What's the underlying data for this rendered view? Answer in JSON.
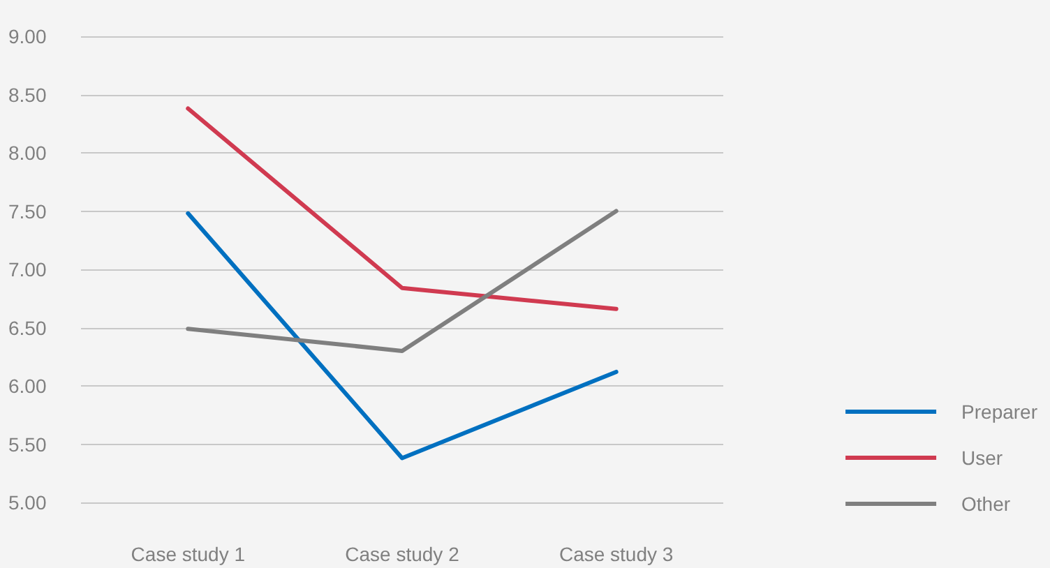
{
  "chart_data": {
    "type": "line",
    "categories": [
      "Case study 1",
      "Case study 2",
      "Case study 3"
    ],
    "series": [
      {
        "name": "Preparer",
        "color": "#0070c0",
        "values": [
          7.48,
          5.38,
          6.12
        ]
      },
      {
        "name": "User",
        "color": "#d03a50",
        "values": [
          8.38,
          6.84,
          6.66
        ]
      },
      {
        "name": "Other",
        "color": "#7f7f7f",
        "values": [
          6.49,
          6.3,
          7.5
        ]
      }
    ],
    "ylim": [
      5,
      9
    ],
    "yticks": [
      {
        "value": 5,
        "label": "5.00"
      },
      {
        "value": 5.5,
        "label": "5.50"
      },
      {
        "value": 6,
        "label": "6.00"
      },
      {
        "value": 6.5,
        "label": "6.50"
      },
      {
        "value": 7,
        "label": "7.00"
      },
      {
        "value": 7.5,
        "label": "7.50"
      },
      {
        "value": 8,
        "label": "8.00"
      },
      {
        "value": 8.5,
        "label": "8.50"
      },
      {
        "value": 9,
        "label": "9.00"
      }
    ],
    "grid": "y",
    "legend": "bottom right",
    "marker": "none",
    "line_style": "solid"
  }
}
